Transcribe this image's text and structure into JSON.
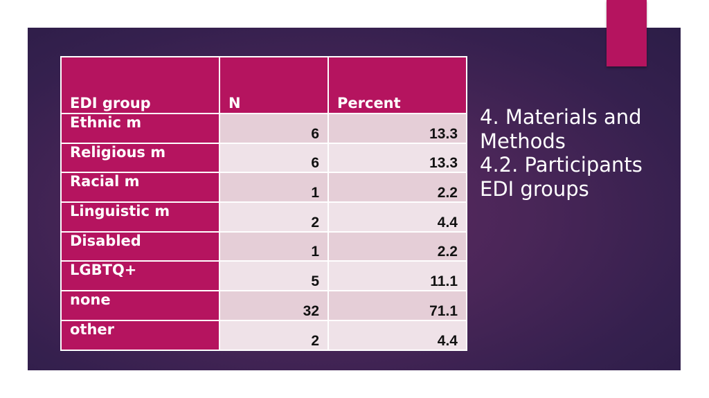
{
  "table": {
    "headers": [
      "EDI group",
      "N",
      "Percent"
    ],
    "rows": [
      {
        "group": "Ethnic m",
        "n": "6",
        "percent": "13.3"
      },
      {
        "group": "Religious m",
        "n": "6",
        "percent": "13.3"
      },
      {
        "group": "Racial m",
        "n": "1",
        "percent": "2.2"
      },
      {
        "group": "Linguistic m",
        "n": "2",
        "percent": "4.4"
      },
      {
        "group": "Disabled",
        "n": "1",
        "percent": "2.2"
      },
      {
        "group": "LGBTQ+",
        "n": "5",
        "percent": "11.1"
      },
      {
        "group": "none",
        "n": "32",
        "percent": "71.1"
      },
      {
        "group": "other",
        "n": "2",
        "percent": "4.4"
      }
    ]
  },
  "title": {
    "lines": [
      "4. Materials and",
      "Methods",
      "4.2. Participants",
      "EDI groups"
    ]
  },
  "colors": {
    "accent": "#b5145f",
    "background": "#4a2658",
    "row_odd": "#e5ced7",
    "row_even": "#efe2e8"
  }
}
